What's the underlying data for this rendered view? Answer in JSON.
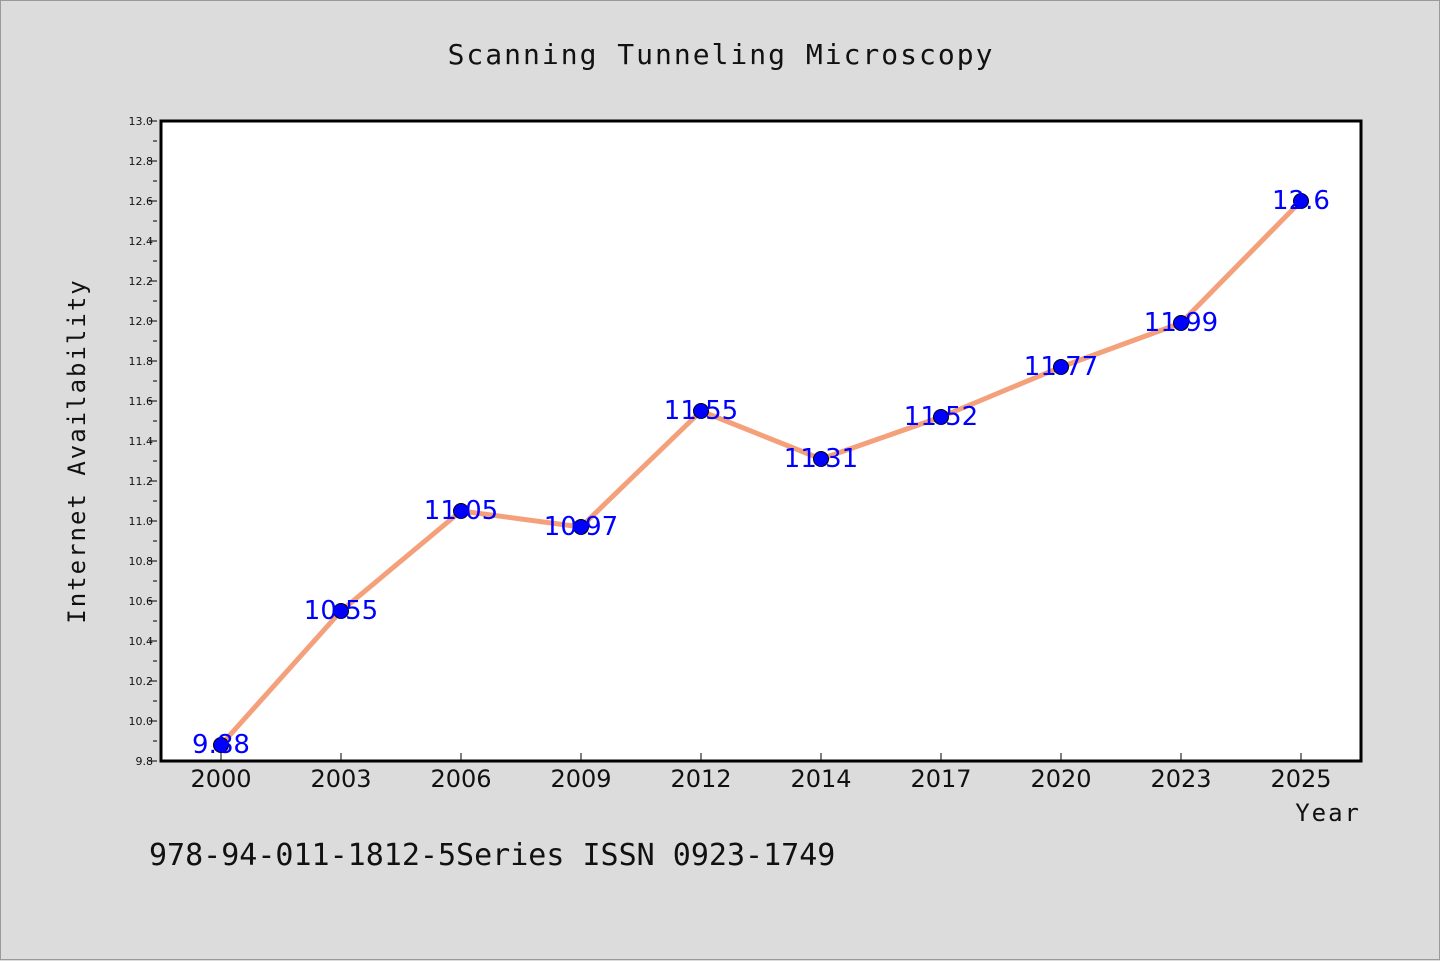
{
  "chart_data": {
    "type": "line",
    "title": "Scanning Tunneling Microscopy",
    "xlabel": "Year",
    "ylabel": "Internet Availability",
    "categories": [
      "2000",
      "2003",
      "2006",
      "2009",
      "2012",
      "2014",
      "2017",
      "2020",
      "2023",
      "2025"
    ],
    "values": [
      9.88,
      10.55,
      11.05,
      10.97,
      11.55,
      11.31,
      11.52,
      11.77,
      11.99,
      12.6
    ],
    "data_labels": [
      "9.88",
      "10.55",
      "11.05",
      "10.97",
      "11.55",
      "11.31",
      "11.52",
      "11.77",
      "11.99",
      "12.6"
    ],
    "ylim": [
      9.8,
      13.0
    ],
    "yticks": [
      "9.8",
      "10.0",
      "10.2",
      "10.4",
      "10.6",
      "10.8",
      "11.0",
      "11.2",
      "11.4",
      "11.6",
      "11.8",
      "12.0",
      "12.2",
      "12.4",
      "12.6",
      "12.8",
      "13.0"
    ],
    "grid": false,
    "colors": {
      "line": "#f4a07a",
      "marker": "#0000ff",
      "data_label": "#0000ff",
      "background": "#dcdcdc",
      "plot_background": "#ffffff"
    }
  },
  "footer": {
    "text": "978-94-011-1812-5Series ISSN 0923-1749"
  }
}
